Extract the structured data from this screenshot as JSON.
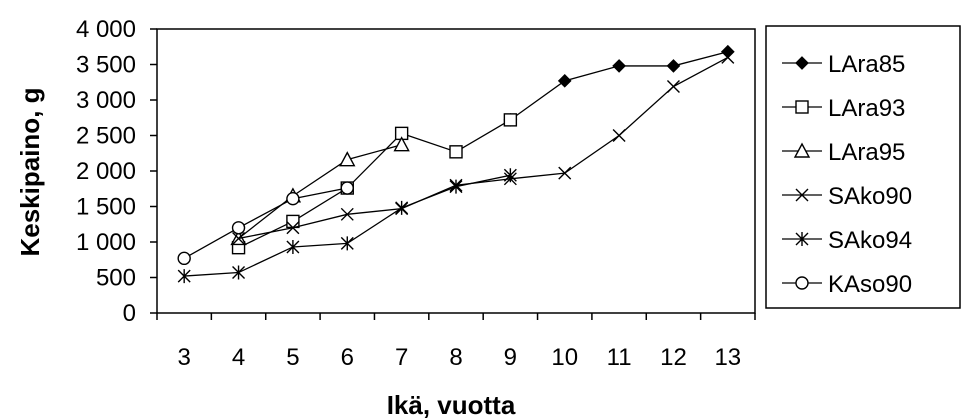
{
  "chart_data": {
    "type": "line",
    "title": "",
    "xlabel": "Ikä, vuotta",
    "ylabel": "Keskipaino, g",
    "categories": [
      "3",
      "4",
      "5",
      "6",
      "7",
      "8",
      "9",
      "10",
      "11",
      "12",
      "13"
    ],
    "y_tick_labels": [
      "0",
      "500",
      "1 000",
      "1 500",
      "2 000",
      "2 500",
      "3 000",
      "3 500",
      "4 000"
    ],
    "ylim": [
      0,
      4000
    ],
    "y_tick_step": 500,
    "grid": false,
    "legend_position": "right",
    "series": [
      {
        "name": "LAra85",
        "marker": "filled-diamond",
        "values": [
          null,
          null,
          null,
          null,
          null,
          null,
          2720,
          3270,
          3480,
          3480,
          3680
        ]
      },
      {
        "name": "LAra93",
        "marker": "open-square",
        "values": [
          null,
          920,
          1290,
          1760,
          2530,
          2270,
          2720,
          null,
          null,
          null,
          null
        ]
      },
      {
        "name": "LAra95",
        "marker": "open-triangle",
        "values": [
          null,
          1050,
          1650,
          2160,
          2370,
          null,
          null,
          null,
          null,
          null,
          null
        ]
      },
      {
        "name": "SAko90",
        "marker": "x",
        "values": [
          null,
          1050,
          1200,
          1390,
          1470,
          1800,
          1890,
          1970,
          2500,
          3190,
          3600
        ]
      },
      {
        "name": "SAko94",
        "marker": "asterisk",
        "values": [
          520,
          570,
          930,
          980,
          1480,
          1780,
          1940,
          null,
          null,
          null,
          null
        ]
      },
      {
        "name": "KAso90",
        "marker": "open-circle",
        "values": [
          770,
          1200,
          1610,
          1760,
          null,
          null,
          null,
          null,
          null,
          null,
          null
        ]
      }
    ]
  }
}
